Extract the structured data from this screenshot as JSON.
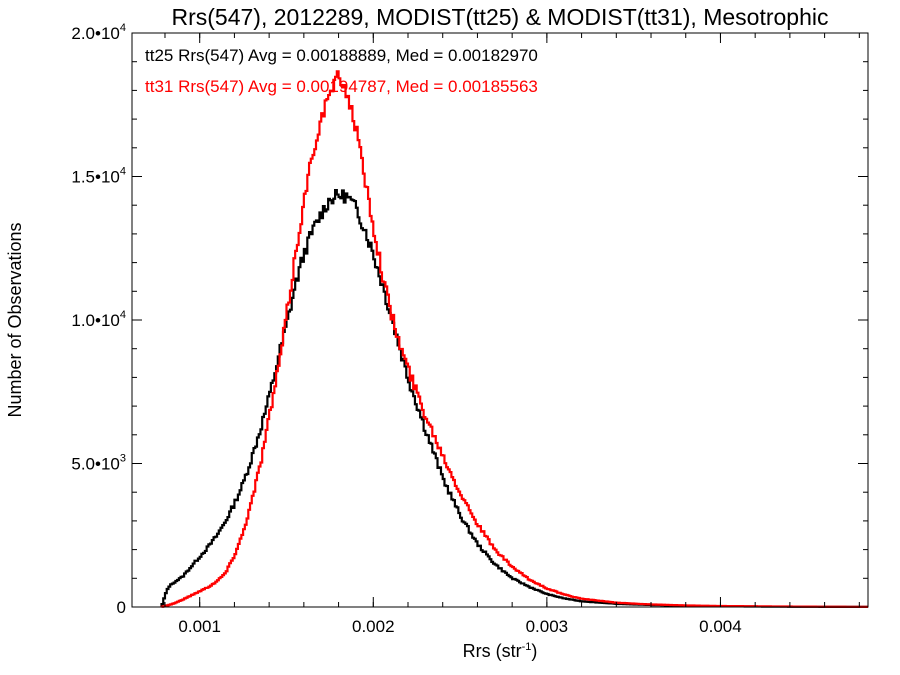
{
  "chart_data": {
    "type": "line",
    "title": "Rrs(547), 2012289, MODIST(tt25) & MODIST(tt31), Mesotrophic",
    "xlabel_base": "Rrs (str",
    "xlabel_sup": "-1",
    "xlabel_close": ")",
    "ylabel": "Number of Observations",
    "xlim": [
      0.00061,
      0.00485
    ],
    "ylim": [
      0,
      20000
    ],
    "x_ticks": [
      {
        "value": 0.001,
        "label": "0.001"
      },
      {
        "value": 0.002,
        "label": "0.002"
      },
      {
        "value": 0.003,
        "label": "0.003"
      },
      {
        "value": 0.004,
        "label": "0.004"
      }
    ],
    "y_ticks": [
      {
        "value": 0,
        "mant": "0",
        "exp": ""
      },
      {
        "value": 5000,
        "mant": "5.0•10",
        "exp": "3"
      },
      {
        "value": 10000,
        "mant": "1.0•10",
        "exp": "4"
      },
      {
        "value": 15000,
        "mant": "1.5•10",
        "exp": "4"
      },
      {
        "value": 20000,
        "mant": "2.0•10",
        "exp": "4"
      }
    ],
    "x_minor_step": 0.0002,
    "y_minor_step": 1000,
    "grid": false,
    "step_width": 1e-05,
    "series": [
      {
        "name": "tt25",
        "color": "#000000",
        "annotation": "tt25 Rrs(547) Avg = 0.00188889, Med = 0.00182970",
        "x": [
          0.00078,
          0.0008,
          0.00082,
          0.00085,
          0.0009,
          0.00095,
          0.001,
          0.00105,
          0.0011,
          0.00115,
          0.0012,
          0.00125,
          0.0013,
          0.00135,
          0.0014,
          0.00145,
          0.0015,
          0.00155,
          0.0016,
          0.00165,
          0.0017,
          0.00175,
          0.0018,
          0.00185,
          0.0019,
          0.00195,
          0.002,
          0.00205,
          0.0021,
          0.00215,
          0.0022,
          0.0023,
          0.0024,
          0.0025,
          0.0026,
          0.0027,
          0.0028,
          0.0029,
          0.003,
          0.0031,
          0.0032,
          0.0034,
          0.0036,
          0.0038,
          0.004,
          0.0043,
          0.0046,
          0.00485
        ],
        "y": [
          0,
          400,
          700,
          850,
          1050,
          1400,
          1750,
          2100,
          2500,
          3000,
          3600,
          4300,
          5200,
          6200,
          7300,
          8600,
          9800,
          11200,
          12300,
          13100,
          13700,
          14200,
          14350,
          14300,
          13900,
          13200,
          12300,
          11300,
          10200,
          9100,
          8000,
          6200,
          4500,
          3200,
          2200,
          1500,
          1000,
          700,
          450,
          300,
          200,
          110,
          70,
          40,
          25,
          12,
          5,
          3
        ]
      },
      {
        "name": "tt31",
        "color": "#ff0000",
        "annotation": "tt31 Rrs(547) Avg = 0.00194787, Med = 0.00185563",
        "x": [
          0.00078,
          0.0008,
          0.00085,
          0.0009,
          0.00095,
          0.001,
          0.00105,
          0.0011,
          0.00115,
          0.0012,
          0.00125,
          0.0013,
          0.00135,
          0.0014,
          0.00145,
          0.0015,
          0.00155,
          0.0016,
          0.00165,
          0.0017,
          0.00175,
          0.0018,
          0.00185,
          0.0019,
          0.00195,
          0.002,
          0.00205,
          0.0021,
          0.00215,
          0.0022,
          0.0023,
          0.0024,
          0.0025,
          0.0026,
          0.0027,
          0.0028,
          0.0029,
          0.003,
          0.0031,
          0.0032,
          0.0034,
          0.0036,
          0.0038,
          0.004,
          0.0043,
          0.0046,
          0.00485
        ],
        "y": [
          0,
          30,
          120,
          250,
          400,
          550,
          700,
          900,
          1200,
          1800,
          2600,
          3700,
          5000,
          6600,
          8200,
          10100,
          12200,
          14100,
          15800,
          17000,
          17900,
          18500,
          17900,
          16700,
          15000,
          13300,
          11700,
          10300,
          9200,
          8300,
          6700,
          5300,
          4000,
          2900,
          2000,
          1400,
          950,
          650,
          430,
          290,
          150,
          90,
          55,
          35,
          20,
          10,
          5
        ]
      }
    ]
  }
}
